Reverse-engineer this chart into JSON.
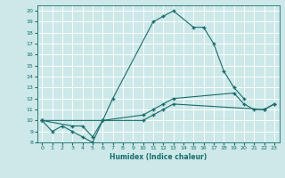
{
  "xlabel": "Humidex (Indice chaleur)",
  "bg_color": "#cce8e8",
  "line_color": "#1a6b6b",
  "grid_color": "#ffffff",
  "xlim": [
    -0.5,
    23.5
  ],
  "ylim": [
    8,
    20.5
  ],
  "xticks": [
    0,
    1,
    2,
    3,
    4,
    5,
    6,
    7,
    8,
    9,
    10,
    11,
    12,
    13,
    14,
    15,
    16,
    17,
    18,
    19,
    20,
    21,
    22,
    23
  ],
  "yticks": [
    8,
    9,
    10,
    11,
    12,
    13,
    14,
    15,
    16,
    17,
    18,
    19,
    20
  ],
  "s1x": [
    0,
    1,
    2,
    3,
    4,
    5,
    6,
    7,
    11,
    12,
    13,
    15,
    16,
    17,
    18,
    19,
    20
  ],
  "s1y": [
    10,
    9,
    9.5,
    9,
    8.5,
    8,
    10,
    12,
    19,
    19.5,
    20,
    18.5,
    18.5,
    17,
    14.5,
    13,
    12
  ],
  "s2x": [
    0,
    3,
    4,
    5,
    6,
    10,
    11,
    12,
    13,
    19,
    20,
    21,
    22,
    23
  ],
  "s2y": [
    10,
    9.5,
    9.5,
    8.5,
    10,
    10.5,
    11,
    11.5,
    12,
    12.5,
    11.5,
    11,
    11,
    11.5
  ],
  "s3x": [
    0,
    10,
    11,
    12,
    13,
    22,
    23
  ],
  "s3y": [
    10,
    10,
    10.5,
    11,
    11.5,
    11,
    11.5
  ]
}
